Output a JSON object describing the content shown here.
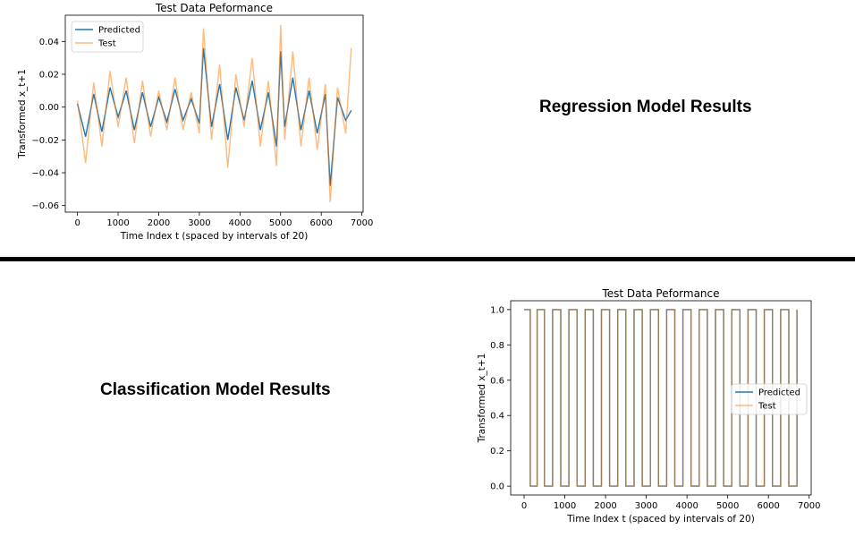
{
  "labels": {
    "regression": "Regression Model Results",
    "classification": "Classification Model Results"
  },
  "colors": {
    "predicted": "#1f77b4",
    "test": "#ff7f0e"
  },
  "chart_data": [
    {
      "type": "line",
      "title": "Test Data Peformance",
      "xlabel": "Time Index t (spaced by intervals of 20)",
      "ylabel": "Transformed x_t+1",
      "xlim": [
        -300,
        7030
      ],
      "ylim": [
        -0.064,
        0.056
      ],
      "xticks": [
        0,
        1000,
        2000,
        3000,
        4000,
        5000,
        6000,
        7000
      ],
      "yticks": [
        -0.06,
        -0.04,
        -0.02,
        0.0,
        0.02,
        0.04
      ],
      "ytick_labels": [
        "−0.06",
        "−0.04",
        "−0.02",
        "0.00",
        "0.02",
        "0.04"
      ],
      "legend": {
        "position": "upper-left",
        "entries": [
          "Predicted",
          "Test"
        ]
      },
      "series": [
        {
          "name": "Predicted",
          "x": [
            0,
            200,
            400,
            600,
            800,
            1000,
            1200,
            1400,
            1600,
            1800,
            2000,
            2200,
            2400,
            2600,
            2800,
            3000,
            3100,
            3300,
            3500,
            3700,
            3900,
            4100,
            4300,
            4500,
            4700,
            4900,
            5000,
            5100,
            5300,
            5500,
            5700,
            5900,
            6100,
            6220,
            6400,
            6600,
            6740
          ],
          "y": [
            0.002,
            -0.018,
            0.008,
            -0.015,
            0.012,
            -0.006,
            0.01,
            -0.014,
            0.009,
            -0.012,
            0.006,
            -0.009,
            0.011,
            -0.008,
            0.005,
            -0.01,
            0.036,
            -0.012,
            0.014,
            -0.02,
            0.012,
            -0.008,
            0.016,
            -0.014,
            0.009,
            -0.024,
            0.034,
            -0.012,
            0.018,
            -0.014,
            0.01,
            -0.016,
            0.008,
            -0.048,
            0.006,
            -0.008,
            -0.002
          ]
        },
        {
          "name": "Test",
          "x": [
            0,
            200,
            400,
            600,
            800,
            1000,
            1200,
            1400,
            1600,
            1800,
            2000,
            2200,
            2400,
            2600,
            2800,
            3000,
            3100,
            3300,
            3500,
            3700,
            3900,
            4100,
            4300,
            4500,
            4700,
            4900,
            5000,
            5100,
            5300,
            5500,
            5700,
            5900,
            6100,
            6220,
            6400,
            6600,
            6740
          ],
          "y": [
            0.004,
            -0.034,
            0.015,
            -0.024,
            0.022,
            -0.012,
            0.018,
            -0.022,
            0.016,
            -0.018,
            0.01,
            -0.014,
            0.018,
            -0.014,
            0.009,
            -0.016,
            0.048,
            -0.02,
            0.026,
            -0.037,
            0.02,
            -0.012,
            0.03,
            -0.024,
            0.016,
            -0.036,
            0.05,
            -0.02,
            0.034,
            -0.024,
            0.018,
            -0.026,
            0.014,
            -0.058,
            0.012,
            -0.016,
            0.036
          ]
        }
      ]
    },
    {
      "type": "line",
      "title": "Test Data Peformance",
      "xlabel": "Time Index t (spaced by intervals of 20)",
      "ylabel": "Transformed x_t+1",
      "xlim": [
        -330,
        7050
      ],
      "ylim": [
        -0.05,
        1.05
      ],
      "xticks": [
        0,
        1000,
        2000,
        3000,
        4000,
        5000,
        6000,
        7000
      ],
      "yticks": [
        0.0,
        0.2,
        0.4,
        0.6,
        0.8,
        1.0
      ],
      "ytick_labels": [
        "0.0",
        "0.2",
        "0.4",
        "0.6",
        "0.8",
        "1.0"
      ],
      "legend": {
        "position": "center-right",
        "entries": [
          "Predicted",
          "Test"
        ]
      },
      "series": [
        {
          "name": "Predicted",
          "x": [
            0,
            150,
            320,
            500,
            700,
            900,
            1100,
            1300,
            1500,
            1700,
            1900,
            2100,
            2300,
            2500,
            2700,
            2900,
            3100,
            3300,
            3500,
            3700,
            3900,
            4100,
            4300,
            4500,
            4700,
            4900,
            5100,
            5300,
            5500,
            5700,
            5900,
            6100,
            6300,
            6500,
            6700
          ],
          "y": [
            1,
            0,
            1,
            0,
            1,
            0,
            1,
            0,
            1,
            0,
            1,
            0,
            1,
            0,
            1,
            0,
            1,
            0,
            1,
            0,
            1,
            0,
            1,
            0,
            1,
            0,
            1,
            0,
            1,
            0,
            1,
            0,
            1,
            0,
            1
          ]
        },
        {
          "name": "Test",
          "x": [
            0,
            150,
            320,
            500,
            700,
            900,
            1100,
            1300,
            1500,
            1700,
            1900,
            2100,
            2300,
            2500,
            2700,
            2900,
            3100,
            3300,
            3500,
            3700,
            3900,
            4100,
            4300,
            4500,
            4700,
            4900,
            5100,
            5300,
            5500,
            5700,
            5900,
            6100,
            6300,
            6500,
            6700
          ],
          "y": [
            1,
            0,
            1,
            0,
            1,
            0,
            1,
            0,
            1,
            0,
            1,
            0,
            1,
            0,
            1,
            0,
            1,
            0,
            1,
            0,
            1,
            0,
            1,
            0,
            1,
            0,
            1,
            0,
            1,
            0,
            1,
            0,
            1,
            0,
            1
          ]
        }
      ]
    }
  ]
}
